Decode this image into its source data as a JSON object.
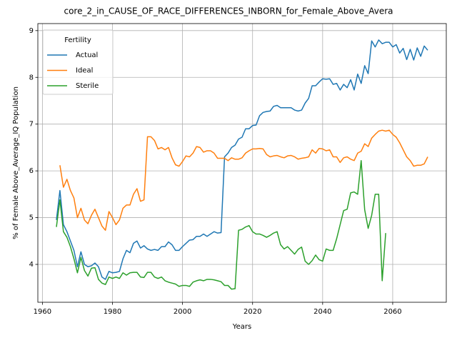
{
  "chart_data": {
    "type": "line",
    "title": "core_2_in_CAUSE_OF_RACE_DIFFERENCES_INBORN_for_Female_Above_Avera",
    "x_label": "Years",
    "y_label": "% of Female Above_Average_IQ Population",
    "legend_title": "Fertility",
    "legend_loc": "upper left",
    "grid": true,
    "xlim": [
      1958.7,
      2075.3
    ],
    "ylim": [
      3.19,
      9.15
    ],
    "xticks": [
      1960,
      1980,
      2000,
      2020,
      2040,
      2060
    ],
    "yticks": [
      4,
      5,
      6,
      7,
      8,
      9
    ],
    "x": [
      1964,
      1965,
      1966,
      1967,
      1968,
      1969,
      1970,
      1971,
      1972,
      1973,
      1974,
      1975,
      1976,
      1977,
      1978,
      1979,
      1980,
      1981,
      1982,
      1983,
      1984,
      1985,
      1986,
      1987,
      1988,
      1989,
      1990,
      1991,
      1992,
      1993,
      1994,
      1995,
      1996,
      1997,
      1998,
      1999,
      2000,
      2001,
      2002,
      2003,
      2004,
      2005,
      2006,
      2007,
      2008,
      2009,
      2010,
      2011,
      2012,
      2013,
      2014,
      2015,
      2016,
      2017,
      2018,
      2019,
      2020,
      2021,
      2022,
      2023,
      2024,
      2025,
      2026,
      2027,
      2028,
      2029,
      2030,
      2031,
      2032,
      2033,
      2034,
      2035,
      2036,
      2037,
      2038,
      2039,
      2040,
      2041,
      2042,
      2043,
      2044,
      2045,
      2046,
      2047,
      2048,
      2049,
      2050,
      2051,
      2052,
      2053,
      2054,
      2055,
      2056,
      2057,
      2058,
      2059,
      2060,
      2061,
      2062,
      2063,
      2064,
      2065,
      2066,
      2067,
      2068,
      2069,
      2070
    ],
    "series": [
      {
        "name": "Actual",
        "color": "#1f77b4",
        "values": [
          4.95,
          5.58,
          4.85,
          4.7,
          4.5,
          4.3,
          3.95,
          4.27,
          4.0,
          3.95,
          3.97,
          4.03,
          3.95,
          3.73,
          3.68,
          3.85,
          3.82,
          3.83,
          3.85,
          4.12,
          4.3,
          4.25,
          4.45,
          4.5,
          4.35,
          4.4,
          4.33,
          4.3,
          4.32,
          4.3,
          4.38,
          4.38,
          4.48,
          4.42,
          4.3,
          4.3,
          4.38,
          4.45,
          4.52,
          4.53,
          4.6,
          4.6,
          4.65,
          4.6,
          4.65,
          4.7,
          4.67,
          4.68,
          6.3,
          6.38,
          6.5,
          6.55,
          6.68,
          6.72,
          6.9,
          6.9,
          6.97,
          6.98,
          7.18,
          7.25,
          7.27,
          7.28,
          7.38,
          7.4,
          7.35,
          7.35,
          7.35,
          7.35,
          7.3,
          7.28,
          7.3,
          7.45,
          7.55,
          7.82,
          7.82,
          7.9,
          7.97,
          7.96,
          7.97,
          7.85,
          7.87,
          7.73,
          7.85,
          7.78,
          7.95,
          7.73,
          8.07,
          7.87,
          8.25,
          8.08,
          8.78,
          8.65,
          8.8,
          8.72,
          8.75,
          8.75,
          8.65,
          8.7,
          8.52,
          8.62,
          8.38,
          8.6,
          8.37,
          8.63,
          8.45,
          8.67,
          8.58
        ]
      },
      {
        "name": "Ideal",
        "color": "#ff7f0e",
        "values": [
          null,
          6.12,
          5.65,
          5.82,
          5.58,
          5.42,
          5.0,
          5.2,
          4.95,
          4.87,
          5.05,
          5.18,
          5.0,
          4.82,
          4.73,
          5.13,
          5.0,
          4.85,
          4.95,
          5.2,
          5.27,
          5.27,
          5.5,
          5.62,
          5.35,
          5.38,
          6.73,
          6.73,
          6.65,
          6.47,
          6.5,
          6.45,
          6.5,
          6.28,
          6.13,
          6.1,
          6.2,
          6.32,
          6.3,
          6.38,
          6.52,
          6.5,
          6.4,
          6.43,
          6.43,
          6.38,
          6.27,
          6.27,
          6.27,
          6.22,
          6.28,
          6.25,
          6.25,
          6.28,
          6.38,
          6.43,
          6.47,
          6.47,
          6.48,
          6.47,
          6.35,
          6.3,
          6.32,
          6.33,
          6.3,
          6.28,
          6.32,
          6.33,
          6.3,
          6.25,
          6.27,
          6.28,
          6.3,
          6.45,
          6.38,
          6.48,
          6.47,
          6.43,
          6.45,
          6.3,
          6.3,
          6.18,
          6.28,
          6.3,
          6.25,
          6.22,
          6.38,
          6.42,
          6.58,
          6.52,
          6.7,
          6.78,
          6.85,
          6.87,
          6.85,
          6.87,
          6.78,
          6.72,
          6.6,
          6.45,
          6.3,
          6.22,
          6.1,
          6.12,
          6.12,
          6.15,
          6.3
        ]
      },
      {
        "name": "Sterile",
        "color": "#2ca02c",
        "values": [
          4.8,
          5.38,
          4.7,
          4.58,
          4.38,
          4.12,
          3.82,
          4.15,
          3.87,
          3.75,
          3.92,
          3.93,
          3.68,
          3.6,
          3.57,
          3.73,
          3.7,
          3.73,
          3.7,
          3.82,
          3.77,
          3.82,
          3.83,
          3.83,
          3.73,
          3.72,
          3.83,
          3.83,
          3.73,
          3.7,
          3.73,
          3.65,
          3.62,
          3.6,
          3.58,
          3.53,
          3.55,
          3.55,
          3.53,
          3.62,
          3.65,
          3.67,
          3.65,
          3.68,
          3.68,
          3.67,
          3.65,
          3.63,
          3.55,
          3.55,
          3.47,
          3.48,
          4.73,
          4.75,
          4.8,
          4.83,
          4.7,
          4.65,
          4.65,
          4.62,
          4.58,
          4.62,
          4.67,
          4.7,
          4.42,
          4.33,
          4.38,
          4.3,
          4.22,
          4.32,
          4.37,
          4.07,
          4.0,
          4.08,
          4.2,
          4.1,
          4.07,
          4.33,
          4.3,
          4.3,
          4.55,
          4.85,
          5.15,
          5.18,
          5.53,
          5.55,
          5.5,
          6.22,
          5.17,
          4.77,
          5.05,
          5.5,
          5.5,
          3.65,
          4.67,
          null,
          null,
          null,
          null,
          null,
          null,
          null,
          null,
          null,
          null,
          null,
          null
        ]
      }
    ]
  }
}
